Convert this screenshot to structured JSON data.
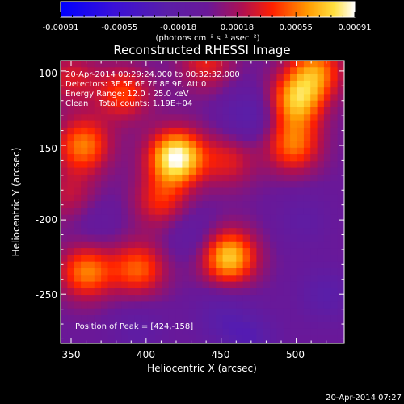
{
  "colorbar": {
    "ticks": [
      "-0.00091",
      "-0.00055",
      "-0.00018",
      "0.00018",
      "0.00055",
      "0.00091"
    ],
    "unit_label": "(photons cm⁻² s⁻¹ asec⁻²)"
  },
  "chart": {
    "title": "Reconstructed RHESSI Image",
    "annotation": {
      "line1": "20-Apr-2014 00:29:24.000 to 00:32:32.000",
      "line2": "Detectors: 3F 5F 6F 7F 8F 9F, Att 0",
      "line3": "Energy Range: 12.0 - 25.0 keV",
      "line4": "Clean    Total counts: 1.19E+04"
    },
    "peak_label": "Position of Peak = [424,-158]",
    "xlabel": "Heliocentric X (arcsec)",
    "ylabel": "Heliocentric Y (arcsec)",
    "xticks": [
      "350",
      "400",
      "450",
      "500"
    ],
    "yticks": [
      "-100",
      "-150",
      "-200",
      "-250"
    ]
  },
  "footer": {
    "timestamp": "20-Apr-2014 07:27"
  },
  "chart_data": {
    "type": "heatmap",
    "title": "Reconstructed RHESSI Image",
    "xlabel": "Heliocentric X (arcsec)",
    "ylabel": "Heliocentric Y (arcsec)",
    "xlim": [
      343,
      532
    ],
    "ylim": [
      -283,
      -93
    ],
    "zlim": [
      -0.00091,
      0.00091
    ],
    "colormap": "rhessi-blue-purple-red-yellow-white",
    "peak": {
      "x": 424,
      "y": -158,
      "value": 0.00091
    },
    "sources": [
      {
        "x": 420,
        "y": -158,
        "amp": 1.0
      },
      {
        "x": 455,
        "y": -225,
        "amp": 0.82
      },
      {
        "x": 360,
        "y": -235,
        "amp": 0.62
      },
      {
        "x": 395,
        "y": -233,
        "amp": 0.55
      },
      {
        "x": 500,
        "y": -120,
        "amp": 0.72
      },
      {
        "x": 498,
        "y": -150,
        "amp": 0.58
      },
      {
        "x": 513,
        "y": -100,
        "amp": 0.6
      },
      {
        "x": 358,
        "y": -150,
        "amp": 0.62
      },
      {
        "x": 385,
        "y": -115,
        "amp": 0.48
      },
      {
        "x": 440,
        "y": -95,
        "amp": 0.38
      },
      {
        "x": 410,
        "y": -188,
        "amp": 0.42
      },
      {
        "x": 455,
        "y": -160,
        "amp": 0.36
      },
      {
        "x": 350,
        "y": -105,
        "amp": 0.34
      },
      {
        "x": 350,
        "y": -185,
        "amp": 0.3
      },
      {
        "x": 468,
        "y": -130,
        "amp": -0.32
      },
      {
        "x": 470,
        "y": -280,
        "amp": -0.3
      },
      {
        "x": 450,
        "y": -265,
        "amp": -0.25
      },
      {
        "x": 395,
        "y": -275,
        "amp": -0.2
      },
      {
        "x": 520,
        "y": -250,
        "amp": -0.28
      },
      {
        "x": 430,
        "y": -210,
        "amp": -0.2
      },
      {
        "x": 505,
        "y": -200,
        "amp": -0.18
      },
      {
        "x": 365,
        "y": -200,
        "amp": -0.15
      }
    ]
  }
}
